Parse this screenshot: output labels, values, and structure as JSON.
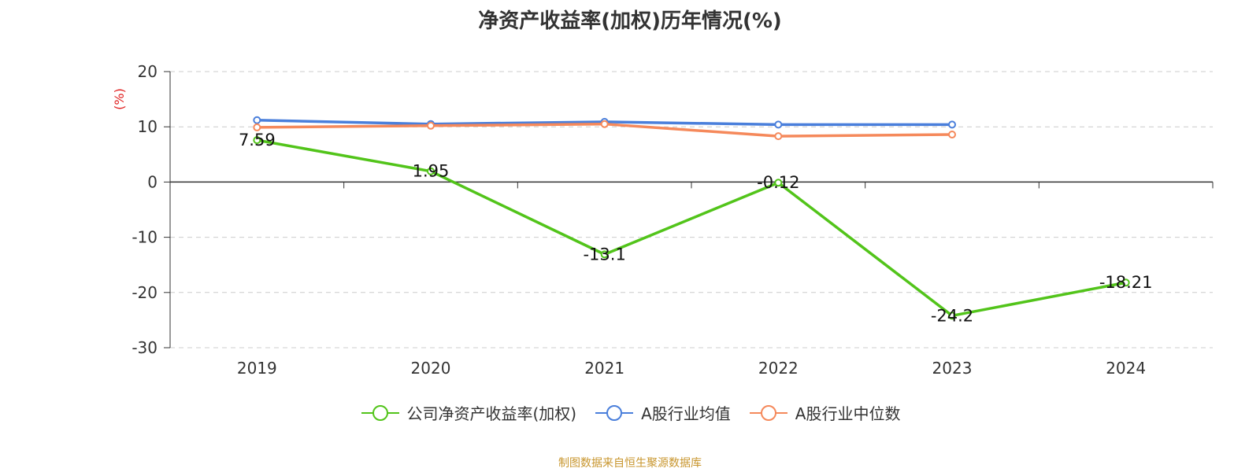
{
  "chart_data": {
    "type": "line",
    "title": "净资产收益率(加权)历年情况(%)",
    "ylabel": "(%)",
    "xlabel": "",
    "categories": [
      "2019",
      "2020",
      "2021",
      "2022",
      "2023",
      "2024"
    ],
    "ylim": [
      -30,
      20
    ],
    "yticks": [
      20,
      10,
      0,
      -10,
      -20,
      -30
    ],
    "grid": true,
    "legend_position": "bottom",
    "series": [
      {
        "name": "公司净资产收益率(加权)",
        "color": "#52c41a",
        "values": [
          7.59,
          1.95,
          -13.1,
          -0.12,
          -24.2,
          -18.21
        ],
        "labels": [
          "7.59",
          "1.95",
          "-13.1",
          "-0.12",
          "-24.2",
          "-18.21"
        ]
      },
      {
        "name": "A股行业均值",
        "color": "#4a7fdb",
        "values": [
          11.2,
          10.5,
          10.9,
          10.4,
          10.4,
          null
        ]
      },
      {
        "name": "A股行业中位数",
        "color": "#f5895b",
        "values": [
          9.9,
          10.2,
          10.5,
          8.3,
          8.6,
          null
        ]
      }
    ],
    "source": "制图数据来自恒生聚源数据库"
  }
}
